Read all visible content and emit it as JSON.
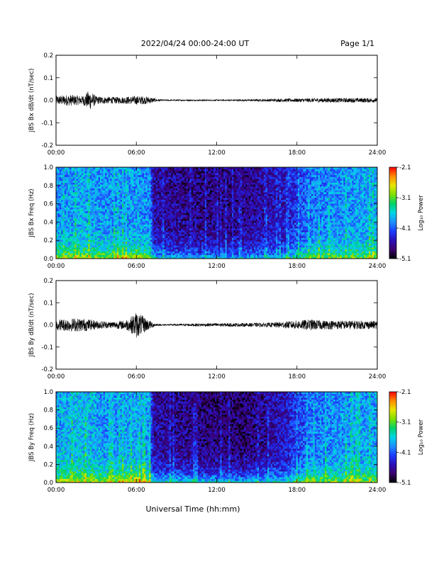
{
  "header": {
    "title": "2022/04/24  00:00-24:00 UT",
    "page": "Page 1/1"
  },
  "footer": {
    "xlabel": "Universal Time (hh:mm)"
  },
  "colors": {
    "trace": "#000000",
    "colormap": [
      "#000000",
      "#3a006e",
      "#2a0fb8",
      "#1c3cff",
      "#1e90ff",
      "#00d7e6",
      "#00d36a",
      "#7fe000",
      "#e6e600",
      "#ff8c00",
      "#ff0000"
    ]
  },
  "chart_data": [
    {
      "type": "line",
      "ylabel": "JBS Bx dB/dt (nT/sec)",
      "xlim": [
        0,
        24
      ],
      "ylim": [
        -0.2,
        0.2
      ],
      "x_ticks": [
        "00:00",
        "06:00",
        "12:00",
        "18:00",
        "24:00"
      ],
      "y_ticks": [
        "-0.2",
        "-0.1",
        "0.0",
        "0.1",
        "0.2"
      ],
      "series": [
        {
          "x": [
            0,
            1,
            2,
            2.5,
            3,
            4,
            5,
            6,
            6.5,
            7,
            7.5,
            8,
            10,
            12,
            14,
            16,
            18,
            20,
            22,
            24
          ],
          "amplitude": [
            0.02,
            0.025,
            0.02,
            0.045,
            0.018,
            0.015,
            0.015,
            0.02,
            0.018,
            0.015,
            0.006,
            0.003,
            0.003,
            0.003,
            0.004,
            0.006,
            0.008,
            0.01,
            0.01,
            0.01
          ]
        }
      ]
    },
    {
      "type": "heatmap",
      "ylabel": "JBS Bx Freq (Hz)",
      "colorbar_label": "Log₁₀ Power",
      "xlim": [
        0,
        24
      ],
      "ylim": [
        0,
        1.0
      ],
      "clim": [
        -5.1,
        -2.1
      ],
      "x_ticks": [
        "00:00",
        "06:00",
        "12:00",
        "18:00",
        "24:00"
      ],
      "y_ticks": [
        "0.0",
        "0.2",
        "0.4",
        "0.6",
        "0.8",
        "1.0"
      ],
      "colorbar_ticks": [
        "-2.1",
        "-3.1",
        "-4.1",
        "-5.1"
      ],
      "x": [
        0,
        2,
        4,
        6,
        7,
        7.3,
        10,
        14,
        17,
        19,
        21,
        24
      ],
      "background_log_power": [
        -3.9,
        -3.8,
        -3.9,
        -3.85,
        -3.9,
        -4.6,
        -4.7,
        -4.7,
        -4.5,
        -4.0,
        -3.9,
        -3.8
      ],
      "low_freq_log_power": [
        -2.9,
        -2.9,
        -3.0,
        -2.8,
        -3.0,
        -3.6,
        -3.8,
        -3.8,
        -3.7,
        -3.1,
        -3.1,
        -3.0
      ]
    },
    {
      "type": "line",
      "ylabel": "JBS By dB/dt (nT/sec)",
      "xlim": [
        0,
        24
      ],
      "ylim": [
        -0.2,
        0.2
      ],
      "x_ticks": [
        "00:00",
        "06:00",
        "12:00",
        "18:00",
        "24:00"
      ],
      "y_ticks": [
        "-0.2",
        "-0.1",
        "0.0",
        "0.1",
        "0.2"
      ],
      "series": [
        {
          "x": [
            0,
            1,
            2,
            3,
            4,
            5,
            5.5,
            6,
            6.5,
            7,
            7.5,
            8,
            10,
            12,
            14,
            16,
            18,
            19,
            20,
            22,
            24
          ],
          "amplitude": [
            0.025,
            0.03,
            0.03,
            0.02,
            0.015,
            0.02,
            0.03,
            0.06,
            0.04,
            0.02,
            0.005,
            0.003,
            0.006,
            0.008,
            0.008,
            0.01,
            0.02,
            0.025,
            0.02,
            0.02,
            0.018
          ]
        }
      ]
    },
    {
      "type": "heatmap",
      "ylabel": "JBS By Freq (Hz)",
      "colorbar_label": "Log₁₀ Power",
      "xlim": [
        0,
        24
      ],
      "ylim": [
        0,
        1.0
      ],
      "clim": [
        -5.1,
        -2.1
      ],
      "x_ticks": [
        "00:00",
        "06:00",
        "12:00",
        "18:00",
        "24:00"
      ],
      "y_ticks": [
        "0.0",
        "0.2",
        "0.4",
        "0.6",
        "0.8",
        "1.0"
      ],
      "colorbar_ticks": [
        "-2.1",
        "-3.1",
        "-4.1",
        "-5.1"
      ],
      "x": [
        0,
        2,
        4,
        6,
        7,
        7.3,
        10,
        14,
        17,
        19,
        21,
        24
      ],
      "background_log_power": [
        -3.8,
        -3.7,
        -3.9,
        -3.8,
        -3.9,
        -4.6,
        -4.7,
        -4.8,
        -4.5,
        -4.0,
        -3.9,
        -3.8
      ],
      "low_freq_log_power": [
        -2.8,
        -2.8,
        -3.0,
        -2.6,
        -3.0,
        -3.5,
        -3.6,
        -3.7,
        -3.5,
        -3.0,
        -3.0,
        -3.0
      ]
    }
  ]
}
